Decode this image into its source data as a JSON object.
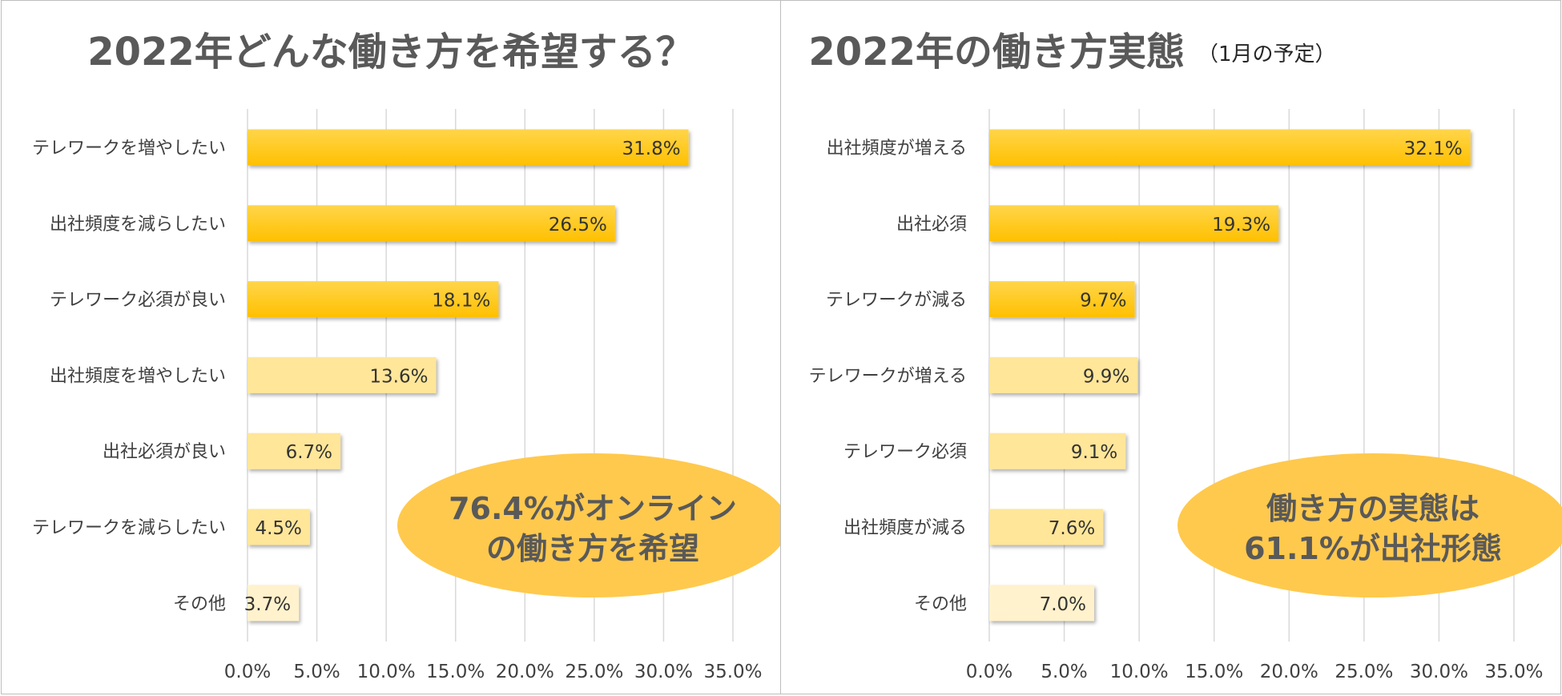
{
  "colors": {
    "bar_strong": "#FFC000",
    "bar_strong_edge": "#F0B400",
    "bar_light": "#FFE699",
    "bar_lighter": "#FFF2CC",
    "callout": "#FFC94D",
    "title": "#595959",
    "grid": "#d9d9d9"
  },
  "chart_data": [
    {
      "type": "bar",
      "orientation": "horizontal",
      "title": "2022年どんな働き方を希望する？",
      "subtitle": "",
      "categories": [
        "テレワークを増やしたい",
        "出社頻度を減らしたい",
        "テレワーク必須が良い",
        "出社頻度を増やしたい",
        "出社必須が良い",
        "テレワークを減らしたい",
        "その他"
      ],
      "values": [
        31.8,
        26.5,
        18.1,
        13.6,
        6.7,
        4.5,
        3.7
      ],
      "value_labels": [
        "31.8%",
        "26.5%",
        "18.1%",
        "13.6%",
        "6.7%",
        "4.5%",
        "3.7%"
      ],
      "shades": [
        "strong",
        "strong",
        "strong",
        "light",
        "light",
        "light",
        "lighter"
      ],
      "xlim": [
        0,
        35
      ],
      "xticks": [
        "0.0%",
        "5.0%",
        "10.0%",
        "15.0%",
        "20.0%",
        "25.0%",
        "30.0%",
        "35.0%"
      ],
      "grid": true,
      "callout": [
        "76.4%がオンライン",
        "の働き方を希望"
      ]
    },
    {
      "type": "bar",
      "orientation": "horizontal",
      "title": "2022年の働き方実態",
      "subtitle": "（1月の予定）",
      "categories": [
        "出社頻度が増える",
        "出社必須",
        "テレワークが減る",
        "テレワークが増える",
        "テレワーク必須",
        "出社頻度が減る",
        "その他"
      ],
      "values": [
        32.1,
        19.3,
        9.7,
        9.9,
        9.1,
        7.6,
        7.0
      ],
      "value_labels": [
        "32.1%",
        "19.3%",
        "9.7%",
        "9.9%",
        "9.1%",
        "7.6%",
        "7.0%"
      ],
      "shades": [
        "strong",
        "strong",
        "strong",
        "light",
        "light",
        "light",
        "lighter"
      ],
      "xlim": [
        0,
        35
      ],
      "xticks": [
        "0.0%",
        "5.0%",
        "10.0%",
        "15.0%",
        "20.0%",
        "25.0%",
        "30.0%",
        "35.0%"
      ],
      "grid": true,
      "callout": [
        "働き方の実態は",
        "61.1%が出社形態"
      ]
    }
  ]
}
